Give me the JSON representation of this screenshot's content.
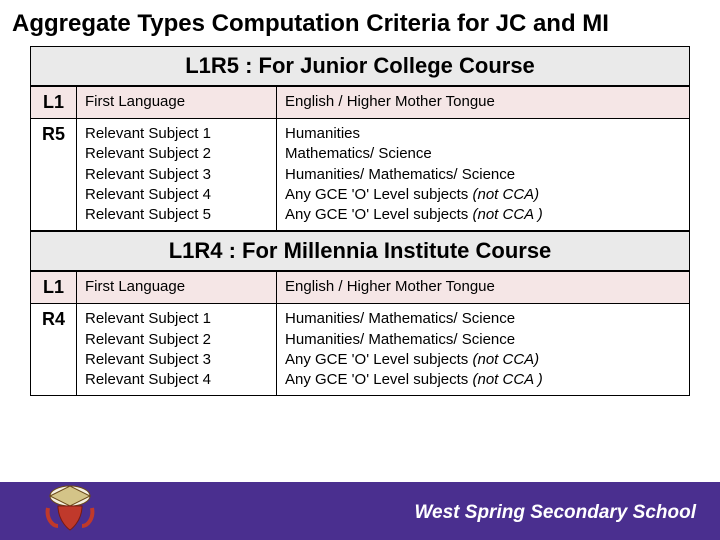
{
  "title": "Aggregate Types Computation Criteria for JC and MI",
  "sections": [
    {
      "header": "L1R5 : For Junior College Course",
      "rows": [
        {
          "code": "L1",
          "mid": [
            "First Language"
          ],
          "right": [
            "English / Higher Mother Tongue"
          ],
          "alt": true
        },
        {
          "code": "R5",
          "mid": [
            "Relevant Subject 1",
            "Relevant Subject 2",
            "Relevant Subject 3",
            "Relevant Subject 4",
            "Relevant Subject 5"
          ],
          "right": [
            "Humanities",
            "Mathematics/ Science",
            "Humanities/ Mathematics/ Science",
            "Any GCE 'O' Level subjects <em>(not CCA)</em>",
            "Any GCE 'O' Level subjects <em>(not CCA )</em>"
          ],
          "alt": false
        }
      ]
    },
    {
      "header": "L1R4 : For Millennia Institute Course",
      "rows": [
        {
          "code": "L1",
          "mid": [
            "First Language"
          ],
          "right": [
            "English / Higher Mother Tongue"
          ],
          "alt": true
        },
        {
          "code": "R4",
          "mid": [
            "Relevant Subject 1",
            "Relevant Subject 2",
            "Relevant Subject 3",
            "Relevant Subject 4"
          ],
          "right": [
            "Humanities/ Mathematics/ Science",
            "Humanities/ Mathematics/ Science",
            "Any GCE 'O' Level subjects <em>(not CCA)</em>",
            "Any GCE 'O' Level subjects <em>(not CCA )</em>"
          ],
          "alt": false
        }
      ]
    }
  ],
  "footer": {
    "school": "West Spring Secondary School",
    "bar_color": "#4a2f8f"
  }
}
